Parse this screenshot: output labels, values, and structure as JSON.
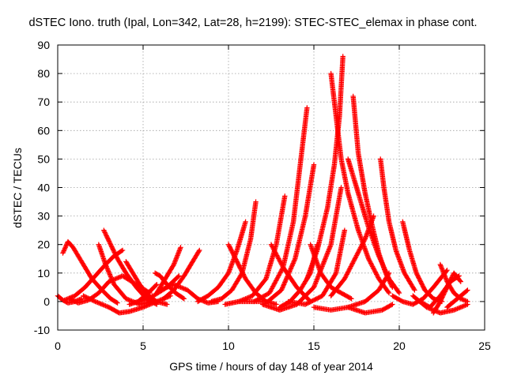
{
  "chart_data": {
    "type": "scatter",
    "title": "dSTEC Iono. truth (Ipal, Lon=342, Lat=28, h=2199): STEC-STEC_elemax in phase cont.",
    "xlabel": "GPS time / hours of day 148 of year 2014",
    "ylabel": "dSTEC  / TECUs",
    "xlim": [
      0,
      25
    ],
    "ylim": [
      -10,
      90
    ],
    "xticks": [
      0,
      5,
      10,
      15,
      20,
      25
    ],
    "yticks": [
      -10,
      0,
      10,
      20,
      30,
      40,
      50,
      60,
      70,
      80,
      90
    ],
    "grid": true,
    "marker": "+",
    "colors": {
      "series": "#ff0000",
      "grid": "#a0a0a0",
      "axis": "#000000"
    },
    "series": [
      {
        "x": [
          0.0,
          0.3,
          0.6,
          1.0,
          1.4
        ],
        "y": [
          2.0,
          0.5,
          -0.5,
          0.0,
          1.0
        ]
      },
      {
        "x": [
          0.3,
          0.6,
          0.9,
          1.5,
          2.0,
          2.6,
          3.1,
          3.5
        ],
        "y": [
          17,
          21,
          19,
          13,
          8,
          4,
          1,
          -0.5
        ]
      },
      {
        "x": [
          0.4,
          1.0,
          1.6,
          2.2,
          2.8,
          3.3,
          3.8
        ],
        "y": [
          0.5,
          2.0,
          5.0,
          9.0,
          13.0,
          16.0,
          18.0
        ]
      },
      {
        "x": [
          0.7,
          1.2,
          1.8,
          2.4,
          3.0,
          3.8,
          4.6,
          5.4
        ],
        "y": [
          1,
          -0.5,
          0.5,
          3,
          7,
          9,
          6,
          3
        ]
      },
      {
        "x": [
          2.7,
          3.1,
          3.5,
          4.0,
          4.6,
          5.2,
          5.8
        ],
        "y": [
          25,
          20,
          15,
          10,
          5,
          1,
          -1
        ]
      },
      {
        "x": [
          2.4,
          2.8,
          3.3,
          4.0,
          4.8,
          5.5
        ],
        "y": [
          20,
          13,
          6,
          1,
          -1,
          0
        ]
      },
      {
        "x": [
          1.5,
          2.2,
          3.0,
          3.6,
          4.2,
          5.0,
          5.8,
          6.6
        ],
        "y": [
          2,
          0,
          -2,
          -4,
          -3.5,
          -2,
          0,
          2
        ]
      },
      {
        "x": [
          4.0,
          4.4,
          4.8,
          5.3,
          5.8,
          6.4
        ],
        "y": [
          14,
          10,
          6,
          2,
          0,
          -1
        ]
      },
      {
        "x": [
          4.2,
          4.7,
          5.3,
          5.8
        ],
        "y": [
          -1,
          0,
          3,
          6
        ]
      },
      {
        "x": [
          5.7,
          6.0,
          6.4,
          6.9,
          7.4
        ],
        "y": [
          10,
          9,
          6,
          3,
          1
        ]
      },
      {
        "x": [
          5.8,
          6.3,
          6.8,
          7.2
        ],
        "y": [
          3,
          8,
          13,
          19
        ]
      },
      {
        "x": [
          4.8,
          5.6,
          6.4,
          7.1
        ],
        "y": [
          0,
          2,
          5,
          9
        ]
      },
      {
        "x": [
          6.2,
          6.8,
          7.4,
          7.9,
          8.3
        ],
        "y": [
          1,
          4,
          9,
          14,
          18
        ]
      },
      {
        "x": [
          6.0,
          6.8,
          7.6,
          8.2,
          8.8,
          9.4
        ],
        "y": [
          4,
          6,
          4,
          1,
          -0.5,
          0
        ]
      },
      {
        "x": [
          8.2,
          8.8,
          9.4,
          10.0,
          10.5,
          11.0
        ],
        "y": [
          0,
          2,
          5,
          10,
          18,
          28
        ]
      },
      {
        "x": [
          9.0,
          9.6,
          10.2,
          10.8,
          11.3,
          11.6
        ],
        "y": [
          0,
          1,
          4,
          10,
          22,
          35
        ]
      },
      {
        "x": [
          10.0,
          10.5,
          11.0,
          11.6,
          12.2,
          12.8
        ],
        "y": [
          20,
          14,
          8,
          3,
          0,
          -1
        ]
      },
      {
        "x": [
          9.8,
          10.6,
          11.4,
          12.2,
          12.8,
          13.3
        ],
        "y": [
          -1,
          0,
          2,
          8,
          20,
          37
        ]
      },
      {
        "x": [
          10.6,
          11.5,
          12.4,
          13.2,
          13.8,
          14.2,
          14.6
        ],
        "y": [
          0,
          0,
          3,
          12,
          28,
          48,
          68
        ]
      },
      {
        "x": [
          11.5,
          12.3,
          13.1,
          13.9,
          14.5,
          15.0
        ],
        "y": [
          0,
          0,
          4,
          15,
          30,
          48
        ]
      },
      {
        "x": [
          12.5,
          13.2,
          14.0,
          14.8
        ],
        "y": [
          20,
          12,
          5,
          0
        ]
      },
      {
        "x": [
          13.0,
          13.6,
          14.2,
          14.8,
          15.2
        ],
        "y": [
          -2,
          0,
          4,
          10,
          20
        ]
      },
      {
        "x": [
          12.0,
          13.0,
          14.0,
          15.0,
          16.0,
          16.6
        ],
        "y": [
          -1,
          -3,
          -1,
          5,
          20,
          40
        ]
      },
      {
        "x": [
          14.8,
          15.4,
          16.0,
          16.6,
          17.2
        ],
        "y": [
          20,
          10,
          5,
          3,
          1
        ]
      },
      {
        "x": [
          13.5,
          14.5,
          15.5,
          16.3,
          16.8
        ],
        "y": [
          0,
          -1,
          2,
          10,
          25
        ]
      },
      {
        "x": [
          16.0,
          16.2,
          16.6,
          17.0,
          17.6,
          18.2,
          18.8,
          19.4
        ],
        "y": [
          80,
          70,
          50,
          38,
          25,
          15,
          8,
          3
        ]
      },
      {
        "x": [
          16.7,
          16.5,
          16.2,
          15.8,
          15.2,
          14.6
        ],
        "y": [
          86,
          65,
          48,
          33,
          18,
          8
        ]
      },
      {
        "x": [
          17.3,
          17.6,
          18.0,
          18.4,
          18.8,
          19.2,
          19.6
        ],
        "y": [
          72,
          52,
          38,
          27,
          17,
          10,
          5
        ]
      },
      {
        "x": [
          17.0,
          17.6,
          18.2,
          18.8,
          19.4,
          20.0
        ],
        "y": [
          50,
          38,
          26,
          16,
          8,
          3
        ]
      },
      {
        "x": [
          18.9,
          19.1,
          19.4,
          19.8,
          20.3,
          20.9
        ],
        "y": [
          50,
          40,
          28,
          18,
          10,
          4
        ]
      },
      {
        "x": [
          15.0,
          16.0,
          17.0,
          18.0,
          18.8,
          19.4
        ],
        "y": [
          -2,
          -3,
          -2,
          0,
          4,
          10
        ]
      },
      {
        "x": [
          17.0,
          18.0,
          19.0,
          19.6
        ],
        "y": [
          -2,
          -4,
          -3,
          -1
        ]
      },
      {
        "x": [
          16.0,
          16.8,
          17.4,
          18.0,
          18.5
        ],
        "y": [
          2,
          8,
          15,
          22,
          30
        ]
      },
      {
        "x": [
          20.2,
          20.6,
          21.0,
          21.5,
          22.0,
          22.5
        ],
        "y": [
          28,
          18,
          10,
          4,
          1,
          0
        ]
      },
      {
        "x": [
          19.6,
          20.2,
          20.8,
          21.4,
          22.0,
          22.8
        ],
        "y": [
          2,
          0,
          -1,
          1,
          5,
          11
        ]
      },
      {
        "x": [
          21.2,
          21.8,
          22.4,
          23.0,
          23.5
        ],
        "y": [
          0,
          -2,
          2,
          7,
          9
        ]
      },
      {
        "x": [
          22.0,
          22.4,
          22.8,
          23.2,
          23.6
        ],
        "y": [
          -4,
          0,
          5,
          10,
          7
        ]
      },
      {
        "x": [
          22.4,
          22.8,
          23.2,
          23.6,
          24.0
        ],
        "y": [
          13,
          7,
          3,
          1,
          0
        ]
      },
      {
        "x": [
          22.8,
          23.2,
          23.6,
          24.0
        ],
        "y": [
          -2,
          0,
          2,
          4
        ]
      },
      {
        "x": [
          20.8,
          21.6,
          22.4,
          23.2,
          24.0
        ],
        "y": [
          2,
          -2,
          -4,
          -3,
          -1
        ]
      }
    ]
  }
}
